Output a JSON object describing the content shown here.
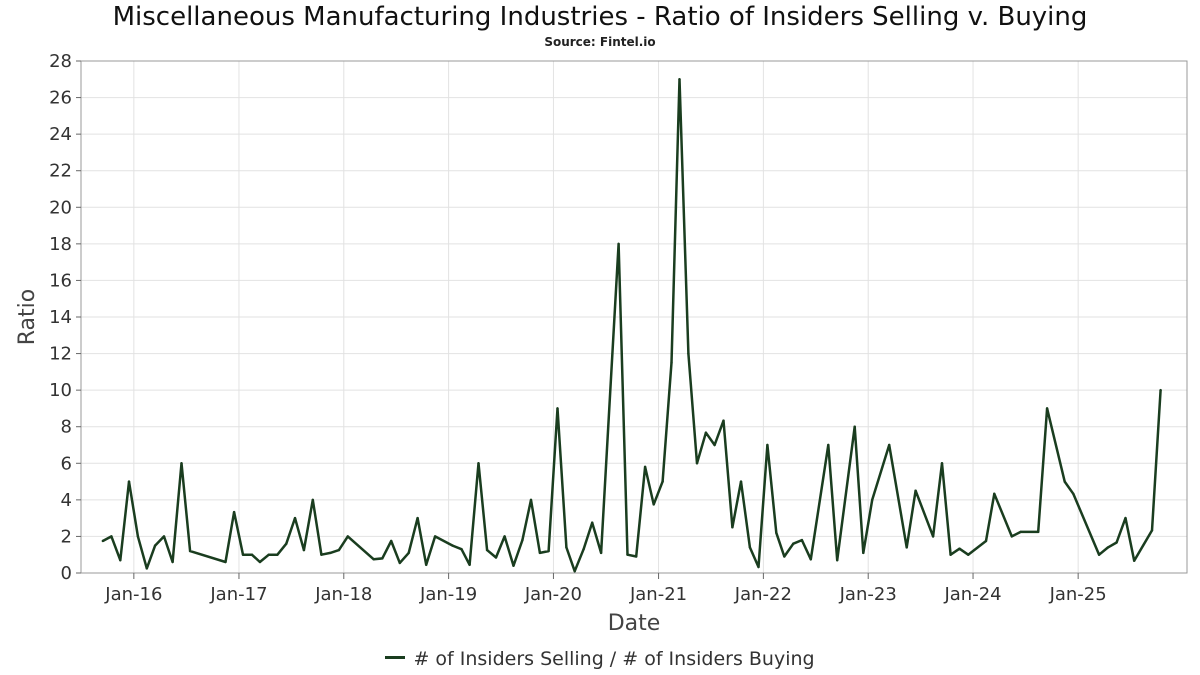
{
  "chart_data": {
    "type": "line",
    "title": "Miscellaneous Manufacturing Industries - Ratio of Insiders Selling v. Buying",
    "subtitle": "Source: Fintel.io",
    "xlabel": "Date",
    "ylabel": "Ratio",
    "ylim": [
      0,
      28
    ],
    "yticks": [
      0,
      2,
      4,
      6,
      8,
      10,
      12,
      14,
      16,
      18,
      20,
      22,
      24,
      26,
      28
    ],
    "xlim": [
      "2015-07-01",
      "2026-01-15"
    ],
    "xticks": [
      {
        "label": "Jan-16",
        "date": "2016-01-01"
      },
      {
        "label": "Jan-17",
        "date": "2017-01-01"
      },
      {
        "label": "Jan-18",
        "date": "2018-01-01"
      },
      {
        "label": "Jan-19",
        "date": "2019-01-01"
      },
      {
        "label": "Jan-20",
        "date": "2020-01-01"
      },
      {
        "label": "Jan-21",
        "date": "2021-01-01"
      },
      {
        "label": "Jan-22",
        "date": "2022-01-01"
      },
      {
        "label": "Jan-23",
        "date": "2023-01-01"
      },
      {
        "label": "Jan-24",
        "date": "2024-01-01"
      },
      {
        "label": "Jan-25",
        "date": "2025-01-01"
      }
    ],
    "grid": true,
    "legend_position": "bottom",
    "series": [
      {
        "name": "# of Insiders Selling / # of Insiders Buying",
        "color": "#1a3d1f",
        "points": [
          [
            "2015-09-15",
            1.75
          ],
          [
            "2015-10-15",
            2.0
          ],
          [
            "2015-11-15",
            0.7
          ],
          [
            "2015-12-15",
            5.0
          ],
          [
            "2016-01-15",
            2.0
          ],
          [
            "2016-02-15",
            0.25
          ],
          [
            "2016-03-15",
            1.5
          ],
          [
            "2016-04-15",
            2.0
          ],
          [
            "2016-05-15",
            0.6
          ],
          [
            "2016-06-15",
            6.0
          ],
          [
            "2016-07-15",
            1.2
          ],
          [
            "2016-11-15",
            0.6
          ],
          [
            "2016-12-15",
            3.33
          ],
          [
            "2017-01-15",
            1.0
          ],
          [
            "2017-02-15",
            1.0
          ],
          [
            "2017-03-15",
            0.6
          ],
          [
            "2017-04-15",
            1.0
          ],
          [
            "2017-05-15",
            1.0
          ],
          [
            "2017-06-15",
            1.6
          ],
          [
            "2017-07-15",
            3.0
          ],
          [
            "2017-08-15",
            1.25
          ],
          [
            "2017-09-15",
            4.0
          ],
          [
            "2017-10-15",
            1.0
          ],
          [
            "2017-11-15",
            1.1
          ],
          [
            "2017-12-15",
            1.25
          ],
          [
            "2018-01-15",
            2.0
          ],
          [
            "2018-04-15",
            0.75
          ],
          [
            "2018-05-15",
            0.8
          ],
          [
            "2018-06-15",
            1.75
          ],
          [
            "2018-07-15",
            0.55
          ],
          [
            "2018-08-15",
            1.1
          ],
          [
            "2018-09-15",
            3.0
          ],
          [
            "2018-10-15",
            0.45
          ],
          [
            "2018-11-15",
            2.0
          ],
          [
            "2019-01-15",
            1.5
          ],
          [
            "2019-02-15",
            1.3
          ],
          [
            "2019-03-15",
            0.45
          ],
          [
            "2019-04-15",
            6.0
          ],
          [
            "2019-05-15",
            1.25
          ],
          [
            "2019-06-15",
            0.85
          ],
          [
            "2019-07-15",
            2.0
          ],
          [
            "2019-08-15",
            0.4
          ],
          [
            "2019-09-15",
            1.8
          ],
          [
            "2019-10-15",
            4.0
          ],
          [
            "2019-11-15",
            1.1
          ],
          [
            "2019-12-15",
            1.2
          ],
          [
            "2020-01-15",
            9.0
          ],
          [
            "2020-02-15",
            1.4
          ],
          [
            "2020-03-15",
            0.1
          ],
          [
            "2020-04-15",
            1.3
          ],
          [
            "2020-05-15",
            2.75
          ],
          [
            "2020-06-15",
            1.1
          ],
          [
            "2020-08-15",
            18.0
          ],
          [
            "2020-09-15",
            1.0
          ],
          [
            "2020-10-15",
            0.9
          ],
          [
            "2020-11-15",
            5.8
          ],
          [
            "2020-12-15",
            3.75
          ],
          [
            "2021-01-15",
            5.0
          ],
          [
            "2021-02-15",
            11.5
          ],
          [
            "2021-03-15",
            27.0
          ],
          [
            "2021-04-15",
            12.0
          ],
          [
            "2021-05-15",
            6.0
          ],
          [
            "2021-06-15",
            7.67
          ],
          [
            "2021-07-15",
            7.0
          ],
          [
            "2021-08-15",
            8.33
          ],
          [
            "2021-09-15",
            2.5
          ],
          [
            "2021-10-15",
            5.0
          ],
          [
            "2021-11-15",
            1.4
          ],
          [
            "2021-12-15",
            0.33
          ],
          [
            "2022-01-15",
            7.0
          ],
          [
            "2022-02-15",
            2.2
          ],
          [
            "2022-03-15",
            0.9
          ],
          [
            "2022-04-15",
            1.6
          ],
          [
            "2022-05-15",
            1.8
          ],
          [
            "2022-06-15",
            0.75
          ],
          [
            "2022-08-15",
            7.0
          ],
          [
            "2022-09-15",
            0.7
          ],
          [
            "2022-11-15",
            8.0
          ],
          [
            "2022-12-15",
            1.1
          ],
          [
            "2023-01-15",
            4.0
          ],
          [
            "2023-03-15",
            7.0
          ],
          [
            "2023-05-15",
            1.4
          ],
          [
            "2023-06-15",
            4.5
          ],
          [
            "2023-08-15",
            2.0
          ],
          [
            "2023-09-15",
            6.0
          ],
          [
            "2023-10-15",
            1.0
          ],
          [
            "2023-11-15",
            1.33
          ],
          [
            "2023-12-15",
            1.0
          ],
          [
            "2024-02-15",
            1.75
          ],
          [
            "2024-03-15",
            4.33
          ],
          [
            "2024-05-15",
            2.0
          ],
          [
            "2024-06-15",
            2.25
          ],
          [
            "2024-08-15",
            2.25
          ],
          [
            "2024-09-15",
            9.0
          ],
          [
            "2024-11-15",
            5.0
          ],
          [
            "2024-12-15",
            4.33
          ],
          [
            "2025-03-15",
            1.0
          ],
          [
            "2025-04-15",
            1.4
          ],
          [
            "2025-05-15",
            1.67
          ],
          [
            "2025-06-15",
            3.0
          ],
          [
            "2025-07-15",
            0.67
          ],
          [
            "2025-09-15",
            2.33
          ],
          [
            "2025-10-15",
            10.0
          ]
        ]
      }
    ]
  }
}
